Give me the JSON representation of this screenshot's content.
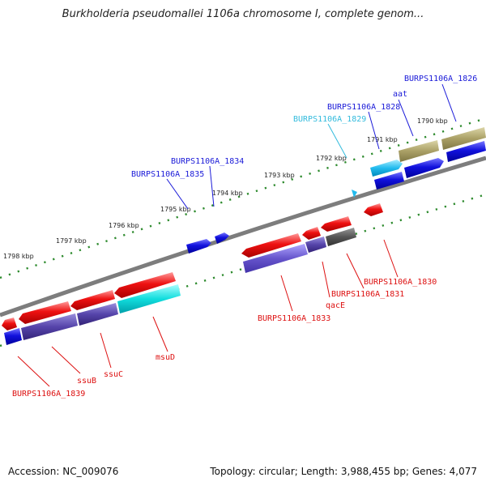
{
  "title": "Burkholderia pseudomallei 1106a chromosome I, complete genom...",
  "footer": {
    "accession": "Accession: NC_009076",
    "info": "Topology: circular; Length: 3,988,455 bp; Genes: 4,077"
  },
  "colors": {
    "backbone": "#7d7d7d",
    "tick_mark": "#2e8b2e",
    "forward_label": "#1a1ad8",
    "reverse_label": "#dd1111",
    "rna_label": "#33bbdd",
    "cds_red": "#ee1111",
    "cds_blue": "#1111dd",
    "cds_purple": "#5544aa",
    "cds_cyan": "#11dddd",
    "cds_khaki": "#aaa066",
    "cds_gray": "#555555"
  },
  "scale_labels": [
    "1790 kbp",
    "1791 kbp",
    "1792 kbp",
    "1793 kbp",
    "1794 kbp",
    "1795 kbp",
    "1796 kbp",
    "1797 kbp",
    "1798 kbp"
  ],
  "forward_gene_labels": [
    "BURPS1106A_1826",
    "aat",
    "BURPS1106A_1828",
    "BURPS1106A_1829",
    "BURPS1106A_1834",
    "BURPS1106A_1835"
  ],
  "reverse_gene_labels": [
    "BURPS1106A_1830",
    "BURPS1106A_1831",
    "qacE",
    "BURPS1106A_1833",
    "msuD",
    "ssuC",
    "ssuB",
    "BURPS1106A_1839"
  ]
}
